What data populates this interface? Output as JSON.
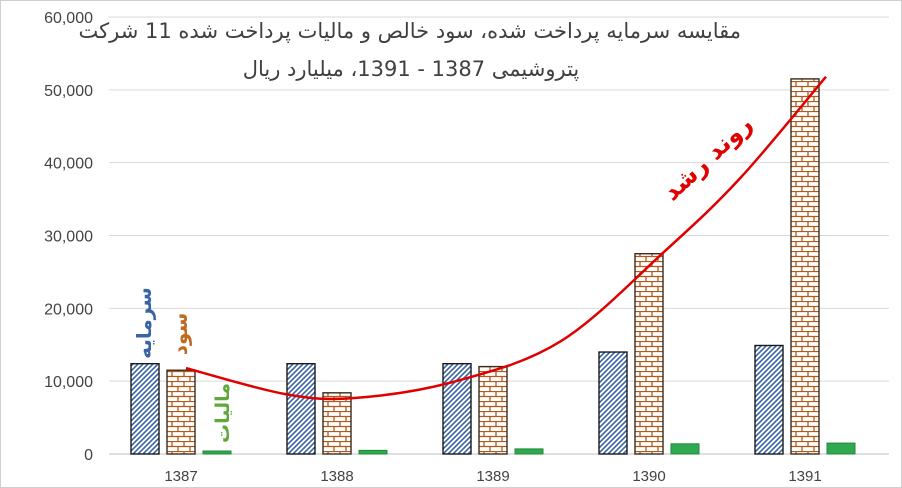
{
  "chart_data": {
    "type": "bar",
    "title_line1": "مقایسه سرمایه پرداخت شده، سود خالص و مالیات پرداخت شده 11 شرکت",
    "title_line2": "پتروشیمی 1387 - 1391، میلیارد ریال",
    "categories": [
      "1387",
      "1388",
      "1389",
      "1390",
      "1391"
    ],
    "series": [
      {
        "name": "سرمایه",
        "values": [
          12400,
          12400,
          12400,
          14000,
          14900
        ],
        "color": "#3a64a8",
        "label_color": "#3a64a8"
      },
      {
        "name": "سود",
        "values": [
          11500,
          8400,
          12000,
          27500,
          51500
        ],
        "color": "#b05a1c",
        "label_color": "#c06a20"
      },
      {
        "name": "مالیات",
        "values": [
          400,
          500,
          700,
          1400,
          1500
        ],
        "color": "#2fa84f",
        "label_color": "#5fa83a"
      }
    ],
    "ylim": [
      0,
      60000
    ],
    "yticks": [
      "0",
      "10,000",
      "20,000",
      "30,000",
      "40,000",
      "50,000",
      "60,000"
    ],
    "grid": true,
    "trend_label": "روند رشد",
    "trend_color": "#e00000"
  }
}
